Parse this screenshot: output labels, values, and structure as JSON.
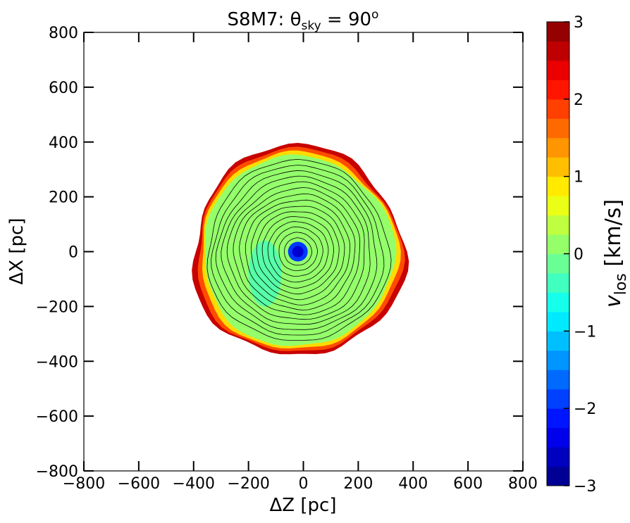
{
  "chart_data": {
    "type": "image",
    "title_parts": [
      "S8M7:  θ",
      "sky",
      " = 90",
      "o"
    ],
    "x_label": "ΔZ [pc]",
    "y_label": "ΔX [pc]",
    "colorbar_label_parts": [
      "v",
      "los",
      " [km/s]"
    ],
    "colormap": "jet",
    "levels": 24,
    "xlim": [
      -800,
      800
    ],
    "ylim": [
      -800,
      800
    ],
    "clim": [
      -3,
      3
    ],
    "xticks": [
      {
        "value": -800,
        "label": "−800"
      },
      {
        "value": -600,
        "label": "−600"
      },
      {
        "value": -400,
        "label": "−400"
      },
      {
        "value": -200,
        "label": "−200"
      },
      0,
      200,
      400,
      600,
      800
    ],
    "yticks": [
      {
        "value": -800,
        "label": "−800"
      },
      {
        "value": -600,
        "label": "−600"
      },
      {
        "value": -400,
        "label": "−400"
      },
      {
        "value": -200,
        "label": "−200"
      },
      0,
      200,
      400,
      600,
      800
    ],
    "cticks": [
      {
        "value": -3,
        "label": "−3"
      },
      {
        "value": -2,
        "label": "−2"
      },
      {
        "value": -1,
        "label": "−1"
      },
      0,
      1,
      2,
      3
    ]
  }
}
